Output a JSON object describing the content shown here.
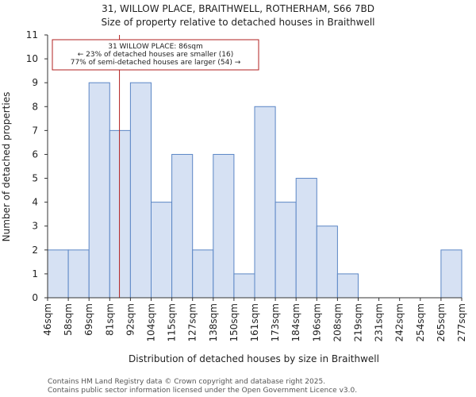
{
  "chart_data": {
    "type": "bar",
    "title": "31, WILLOW PLACE, BRAITHWELL, ROTHERHAM, S66 7BD",
    "subtitle": "Size of property relative to detached houses in Braithwell",
    "xlabel": "Distribution of detached houses by size in Braithwell",
    "ylabel": "Number of detached properties",
    "ylim": [
      0,
      11
    ],
    "yticks": [
      0,
      1,
      2,
      3,
      4,
      5,
      6,
      7,
      8,
      9,
      10,
      11
    ],
    "bin_labels": [
      "46sqm",
      "58sqm",
      "69sqm",
      "81sqm",
      "92sqm",
      "104sqm",
      "115sqm",
      "127sqm",
      "138sqm",
      "150sqm",
      "161sqm",
      "173sqm",
      "184sqm",
      "196sqm",
      "208sqm",
      "219sqm",
      "231sqm",
      "242sqm",
      "254sqm",
      "265sqm",
      "277sqm"
    ],
    "values": [
      2,
      2,
      9,
      7,
      9,
      4,
      6,
      2,
      6,
      1,
      8,
      4,
      5,
      3,
      1,
      0,
      0,
      0,
      0,
      2
    ],
    "property_marker": {
      "bin_position": 3.47,
      "label": "31 WILLOW PLACE: 86sqm"
    },
    "annotation_lines": [
      "31 WILLOW PLACE: 86sqm",
      "← 23% of detached houses are smaller (16)",
      "77% of semi-detached houses are larger (54) →"
    ],
    "colors": {
      "bar_fill": "#d6e1f3",
      "bar_edge": "#5b86c5",
      "marker": "#b22222"
    },
    "grid": false
  },
  "footer": {
    "line1": "Contains HM Land Registry data © Crown copyright and database right 2025.",
    "line2": "Contains public sector information licensed under the Open Government Licence v3.0."
  }
}
